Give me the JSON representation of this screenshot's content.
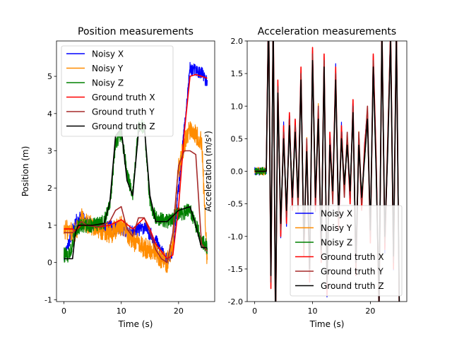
{
  "chart_data": [
    {
      "type": "line",
      "title": "Position measurements",
      "xlabel": "Time (s)",
      "ylabel": "Position (m)",
      "xlim": [
        -1.3,
        26.3
      ],
      "ylim": [
        -1.05,
        5.95
      ],
      "xticks": [
        0,
        10,
        20
      ],
      "yticks": [
        -1,
        0,
        1,
        2,
        3,
        4,
        5
      ],
      "legend_position": "top-left",
      "series": [
        {
          "name": "Noisy X",
          "color": "#0000ff",
          "noise": 0.18,
          "x": [
            0,
            2,
            3,
            5,
            8,
            10,
            12,
            14,
            16,
            17,
            18,
            19,
            20,
            21,
            22,
            24,
            25
          ],
          "y": [
            0.15,
            1.1,
            1.2,
            1.0,
            0.95,
            0.9,
            0.8,
            0.95,
            0.6,
            0.3,
            0.05,
            0.3,
            2.0,
            3.6,
            5.2,
            5.1,
            4.8
          ]
        },
        {
          "name": "Noisy Y",
          "color": "#ff8c00",
          "noise": 0.28,
          "x": [
            0,
            2,
            3,
            5,
            8,
            10,
            12,
            14,
            16,
            17,
            18,
            19,
            20,
            21,
            22,
            24,
            25
          ],
          "y": [
            0.9,
            0.8,
            1.2,
            0.95,
            0.75,
            1.0,
            0.6,
            0.4,
            0.3,
            0.1,
            0.0,
            0.5,
            2.5,
            3.2,
            3.6,
            3.3,
            0.0
          ]
        },
        {
          "name": "Noisy Z",
          "color": "#008000",
          "noise": 0.2,
          "x": [
            0,
            1,
            2,
            3,
            5,
            7,
            8,
            9,
            10,
            11,
            12,
            13,
            14,
            15,
            16,
            18,
            20,
            22,
            24,
            25
          ],
          "y": [
            0.2,
            0.2,
            0.9,
            1.0,
            1.0,
            1.1,
            1.5,
            3.2,
            3.5,
            2.4,
            1.8,
            3.6,
            3.7,
            1.6,
            1.2,
            1.1,
            1.3,
            1.4,
            0.6,
            0.4
          ]
        },
        {
          "name": "Ground truth X",
          "color": "#ff0000",
          "noise": 0,
          "x": [
            0,
            1.5,
            2,
            3,
            4,
            6,
            8,
            10,
            12,
            14,
            15,
            16,
            17,
            18,
            19,
            20,
            21,
            22,
            23,
            24,
            25
          ],
          "y": [
            0.9,
            0.9,
            0.85,
            1.0,
            1.0,
            0.95,
            1.0,
            1.15,
            0.9,
            1.2,
            0.9,
            0.5,
            0.3,
            0.1,
            0.2,
            1.5,
            3.5,
            5.0,
            5.05,
            5.0,
            4.95
          ]
        },
        {
          "name": "Ground truth Y",
          "color": "#a52a2a",
          "noise": 0,
          "x": [
            0,
            1.5,
            2,
            3,
            4,
            6,
            8,
            9,
            10,
            11,
            12,
            13,
            14,
            15,
            16,
            17,
            18,
            19,
            20,
            21,
            22,
            23,
            24,
            25
          ],
          "y": [
            0.8,
            0.8,
            0.85,
            1.1,
            1.0,
            0.95,
            1.1,
            1.4,
            1.5,
            0.9,
            0.7,
            1.2,
            1.2,
            0.8,
            0.35,
            0.1,
            0.0,
            0.8,
            2.6,
            3.0,
            3.0,
            2.9,
            0.5,
            0.3
          ]
        },
        {
          "name": "Ground truth Z",
          "color": "#000000",
          "noise": 0,
          "x": [
            0,
            1.5,
            2,
            2.5,
            3,
            5,
            7,
            8,
            9,
            10,
            11,
            12,
            13,
            14,
            15,
            16,
            18,
            20,
            22,
            23,
            24,
            25
          ],
          "y": [
            0.1,
            0.1,
            0.8,
            1.0,
            1.0,
            1.0,
            1.05,
            1.6,
            3.4,
            3.6,
            2.2,
            1.8,
            3.5,
            3.7,
            1.8,
            1.1,
            1.1,
            1.4,
            1.5,
            1.0,
            0.4,
            0.4
          ]
        }
      ]
    },
    {
      "type": "line",
      "title": "Acceleration measurements",
      "xlabel": "Time (s)",
      "ylabel": "Acceleration (m/s²)",
      "xlim": [
        -1.3,
        26.3
      ],
      "ylim": [
        -2.0,
        2.0
      ],
      "xticks": [
        0,
        10,
        20
      ],
      "yticks": [
        -2.0,
        -1.5,
        -1.0,
        -0.5,
        0.0,
        0.5,
        1.0,
        1.5,
        2.0
      ],
      "legend_position": "bottom-right",
      "series": [
        {
          "name": "Noisy X",
          "color": "#0000ff",
          "noise": 0.06,
          "x": [
            0,
            1,
            2,
            2.4,
            2.8,
            3.2,
            3.6,
            4,
            4.5,
            5,
            5.5,
            6,
            6.5,
            7,
            7.5,
            8,
            8.5,
            9,
            9.5,
            10,
            10.5,
            11,
            11.5,
            12,
            12.5,
            13,
            13.5,
            14,
            14.5,
            15,
            15.5,
            16,
            16.5,
            17,
            17.5,
            18,
            18.5,
            19,
            19.5,
            20,
            20.5,
            21,
            21.5,
            22,
            22.5,
            23,
            23.5,
            24,
            24.5,
            25
          ],
          "y": [
            0,
            0,
            0,
            2.6,
            -1.8,
            2.5,
            -2.5,
            1.4,
            -1.0,
            0.7,
            -0.8,
            0.9,
            -0.6,
            0.8,
            -0.5,
            1.6,
            -1.3,
            0.4,
            -1.7,
            1.9,
            -0.6,
            0.9,
            -1.4,
            1.8,
            -1.9,
            0.6,
            -0.4,
            1.6,
            -0.9,
            0.7,
            -0.3,
            0.5,
            -0.5,
            1.1,
            -1.6,
            0.5,
            -0.6,
            0.4,
            0.9,
            -1.1,
            1.8,
            0.2,
            -2.2,
            2.3,
            -1.2,
            0.4,
            2.2,
            -1.5,
            2.3,
            -2.2
          ]
        },
        {
          "name": "Noisy Y",
          "color": "#ff8c00",
          "noise": 0.06,
          "x": [
            0,
            1,
            2,
            2.4,
            2.8,
            3.2,
            3.6,
            4,
            4.5,
            5,
            5.5,
            6,
            6.5,
            7,
            7.5,
            8,
            8.5,
            9,
            9.5,
            10,
            10.5,
            11,
            11.5,
            12,
            12.5,
            13,
            13.5,
            14,
            14.5,
            15,
            15.5,
            16,
            16.5,
            17,
            17.5,
            18,
            18.5,
            19,
            19.5,
            20,
            20.5,
            21,
            21.5,
            22,
            22.5,
            23,
            23.5,
            24,
            24.5,
            25
          ],
          "y": [
            0,
            0,
            0,
            2.5,
            -1.7,
            2.4,
            -2.4,
            1.3,
            -0.9,
            0.6,
            -0.7,
            0.8,
            -0.5,
            0.7,
            -0.6,
            1.5,
            -1.2,
            0.5,
            -1.6,
            1.8,
            -0.5,
            1.0,
            -1.3,
            1.7,
            -1.8,
            0.5,
            -0.5,
            1.5,
            -0.8,
            0.6,
            -0.4,
            0.6,
            -0.4,
            1.0,
            -1.5,
            0.6,
            -0.5,
            0.3,
            1.0,
            -1.0,
            1.7,
            0.1,
            -2.1,
            2.2,
            -1.1,
            0.5,
            2.1,
            -1.4,
            2.2,
            -2.1
          ]
        },
        {
          "name": "Noisy Z",
          "color": "#008000",
          "noise": 0.06,
          "x": [
            0,
            1,
            2,
            2.4,
            2.8,
            3.2,
            3.6,
            4,
            4.5,
            5,
            5.5,
            6,
            6.5,
            7,
            7.5,
            8,
            8.5,
            9,
            9.5,
            10,
            10.5,
            11,
            11.5,
            12,
            12.5,
            13,
            13.5,
            14,
            14.5,
            15,
            15.5,
            16,
            16.5,
            17,
            17.5,
            18,
            18.5,
            19,
            19.5,
            20,
            20.5,
            21,
            21.5,
            22,
            22.5,
            23,
            23.5,
            24,
            24.5,
            25
          ],
          "y": [
            0,
            0,
            0,
            2.4,
            -1.6,
            2.3,
            -2.3,
            1.2,
            -0.8,
            0.5,
            -0.6,
            0.7,
            -0.4,
            0.6,
            -0.4,
            1.4,
            -1.1,
            0.3,
            -1.5,
            1.7,
            -0.4,
            0.8,
            -1.2,
            1.6,
            -1.7,
            0.4,
            -0.3,
            1.4,
            -0.7,
            0.5,
            -0.2,
            0.4,
            -0.3,
            0.9,
            -1.4,
            0.4,
            -0.4,
            0.2,
            0.8,
            -0.9,
            1.6,
            0.0,
            -2.0,
            2.1,
            -1.0,
            0.3,
            2.0,
            -1.3,
            2.1,
            -2.0
          ]
        },
        {
          "name": "Ground truth X",
          "color": "#ff0000",
          "noise": 0,
          "x": [
            0,
            1,
            2,
            2.4,
            2.8,
            3.2,
            3.6,
            4,
            4.5,
            5,
            5.5,
            6,
            6.5,
            7,
            7.5,
            8,
            8.5,
            9,
            9.5,
            10,
            10.5,
            11,
            11.5,
            12,
            12.5,
            13,
            13.5,
            14,
            14.5,
            15,
            15.5,
            16,
            16.5,
            17,
            17.5,
            18,
            18.5,
            19,
            19.5,
            20,
            20.5,
            21,
            21.5,
            22,
            22.5,
            23,
            23.5,
            24,
            24.5,
            25
          ],
          "y": [
            0,
            0,
            0,
            2.6,
            -1.8,
            2.5,
            -2.5,
            1.4,
            -1.0,
            0.7,
            -0.8,
            0.9,
            -0.6,
            0.8,
            -0.5,
            1.6,
            -1.3,
            0.4,
            -1.7,
            1.9,
            -0.6,
            0.9,
            -1.4,
            1.8,
            -1.9,
            0.6,
            -0.4,
            1.6,
            -0.9,
            0.7,
            -0.3,
            0.5,
            -0.5,
            1.1,
            -1.6,
            0.5,
            -0.6,
            0.4,
            0.9,
            -1.1,
            1.8,
            0.2,
            -2.2,
            2.3,
            -1.2,
            0.4,
            2.2,
            -1.5,
            2.3,
            -2.2
          ]
        },
        {
          "name": "Ground truth Y",
          "color": "#a52a2a",
          "noise": 0,
          "x": [
            0,
            1,
            2,
            2.4,
            2.8,
            3.2,
            3.6,
            4,
            4.5,
            5,
            5.5,
            6,
            6.5,
            7,
            7.5,
            8,
            8.5,
            9,
            9.5,
            10,
            10.5,
            11,
            11.5,
            12,
            12.5,
            13,
            13.5,
            14,
            14.5,
            15,
            15.5,
            16,
            16.5,
            17,
            17.5,
            18,
            18.5,
            19,
            19.5,
            20,
            20.5,
            21,
            21.5,
            22,
            22.5,
            23,
            23.5,
            24,
            24.5,
            25
          ],
          "y": [
            0,
            0,
            0,
            2.5,
            -1.7,
            2.4,
            -2.4,
            1.3,
            -0.9,
            0.6,
            -0.7,
            0.8,
            -0.5,
            0.7,
            -0.6,
            1.5,
            -1.2,
            0.5,
            -1.6,
            1.8,
            -0.5,
            1.0,
            -1.3,
            1.7,
            -1.8,
            0.5,
            -0.5,
            1.5,
            -0.8,
            0.6,
            -0.4,
            0.6,
            -0.4,
            1.0,
            -1.5,
            0.6,
            -0.5,
            0.3,
            1.0,
            -1.0,
            1.7,
            0.1,
            -2.1,
            2.2,
            -1.1,
            0.5,
            2.1,
            -1.4,
            2.2,
            -2.1
          ]
        },
        {
          "name": "Ground truth Z",
          "color": "#000000",
          "noise": 0,
          "x": [
            0,
            1,
            2,
            2.4,
            2.8,
            3.2,
            3.6,
            4,
            4.5,
            5,
            5.5,
            6,
            6.5,
            7,
            7.5,
            8,
            8.5,
            9,
            9.5,
            10,
            10.5,
            11,
            11.5,
            12,
            12.5,
            13,
            13.5,
            14,
            14.5,
            15,
            15.5,
            16,
            16.5,
            17,
            17.5,
            18,
            18.5,
            19,
            19.5,
            20,
            20.5,
            21,
            21.5,
            22,
            22.5,
            23,
            23.5,
            24,
            24.5,
            25
          ],
          "y": [
            0,
            0,
            0,
            2.4,
            -1.6,
            2.3,
            -2.3,
            1.2,
            -0.8,
            0.5,
            -0.6,
            0.7,
            -0.4,
            0.6,
            -0.4,
            1.4,
            -1.1,
            0.3,
            -1.5,
            1.7,
            -0.4,
            0.8,
            -1.2,
            1.6,
            -1.7,
            0.4,
            -0.3,
            1.4,
            -0.7,
            0.5,
            -0.2,
            0.4,
            -0.3,
            0.9,
            -1.4,
            0.4,
            -0.4,
            0.2,
            0.8,
            -0.9,
            1.6,
            0.0,
            -2.0,
            2.1,
            -1.0,
            0.3,
            2.0,
            -1.3,
            2.1,
            -2.0
          ]
        }
      ]
    }
  ]
}
